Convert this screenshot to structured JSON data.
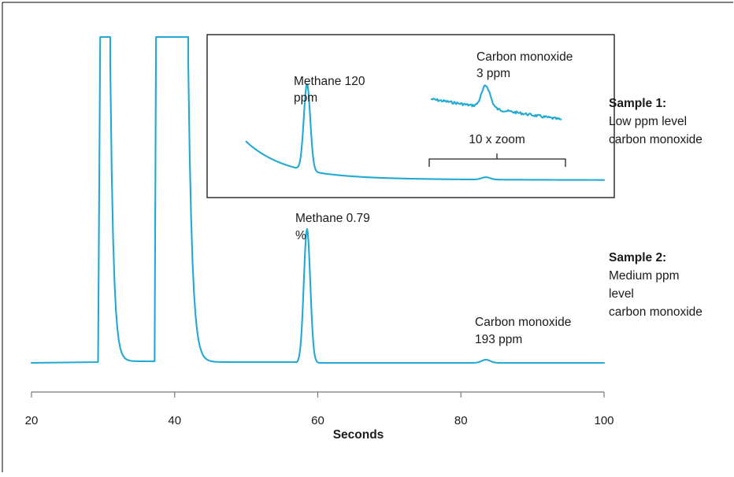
{
  "chart_data": {
    "type": "line",
    "xlabel": "Seconds",
    "xlim": [
      20,
      100
    ],
    "xticks": [
      "20",
      "40",
      "60",
      "80",
      "100"
    ],
    "colors": {
      "trace": "#22a9d4",
      "text": "#1a1a1a",
      "frame": "#000000"
    },
    "series": [
      {
        "sample_label": "Sample 1:",
        "sample_description": [
          "Low ppm level",
          "carbon monoxide"
        ],
        "x_range": [
          50,
          100
        ],
        "peaks": [
          {
            "label_lines": [
              "Methane 120",
              "ppm"
            ],
            "x": 58.5
          },
          {
            "label_lines": [
              "Carbon monoxide",
              "3 ppm"
            ],
            "x": 83.5
          }
        ],
        "zoom_label": "10 x zoom"
      },
      {
        "sample_label": "Sample 2:",
        "sample_description": [
          "Medium ppm",
          "level",
          "carbon monoxide"
        ],
        "x_range": [
          20,
          100
        ],
        "solvent_peaks_x": [
          [
            29.6,
            31.0
          ],
          [
            37.4,
            41.9
          ]
        ],
        "peaks": [
          {
            "label_lines": [
              "Methane 0.79",
              "%"
            ],
            "x": 58.5
          },
          {
            "label_lines": [
              "Carbon monoxide",
              "193 ppm"
            ],
            "x": 83.5
          }
        ]
      }
    ]
  }
}
